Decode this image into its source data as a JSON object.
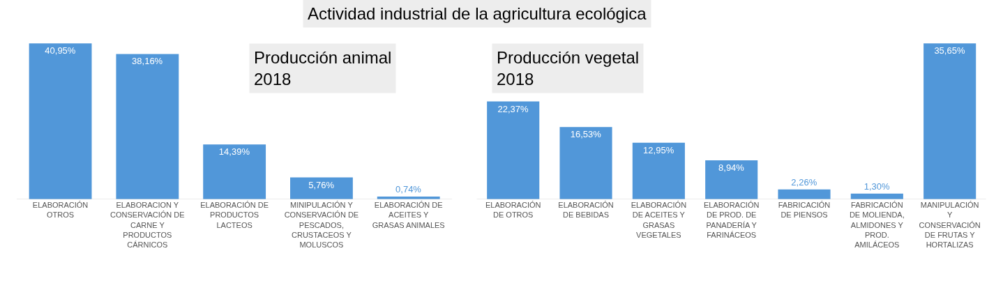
{
  "chart_data": [
    {
      "type": "bar",
      "title": "Actividad industrial de la agricultura ecológica",
      "subtitle": "Producción animal\n2018",
      "color": "#5197d9",
      "categories": [
        "ELABORACIÓN OTROS",
        "ELABORACION Y CONSERVACIÓN DE CARNE Y PRODUCTOS CÁRNICOS",
        "ELABORACIÓN DE PRODUCTOS LACTEOS",
        "MINIPULACIÓN Y CONSERVACIÓN DE PESCADOS, CRUSTACEOS Y MOLUSCOS",
        "ELABORACIÓN DE ACEITES Y GRASAS ANIMALES"
      ],
      "values": [
        40.95,
        38.16,
        14.39,
        5.76,
        0.74
      ],
      "value_labels": [
        "40,95%",
        "38,16%",
        "14,39%",
        "5,76%",
        "0,74%"
      ]
    },
    {
      "type": "bar",
      "title": "Producción vegetal\n2018",
      "color": "#5197d9",
      "categories": [
        "ELABORACIÓN DE OTROS",
        "ELABORACIÓN DE BEBIDAS",
        "ELABORACIÓN DE ACEITES Y GRASAS VEGETALES",
        "ELABORACIÓN DE PROD. DE PANADERÍA Y FARINÁCEOS",
        "FABRICACIÓN DE PIENSOS",
        "FABRICACIÓN DE MOLIENDA, ALMIDONES Y PROD. AMILÁCEOS",
        "MANIPULACIÓN Y CONSERVACIÓN DE FRUTAS Y HORTALIZAS"
      ],
      "values": [
        22.37,
        16.53,
        12.95,
        8.94,
        2.26,
        1.3,
        35.65
      ],
      "value_labels": [
        "22,37%",
        "16,53%",
        "12,95%",
        "8,94%",
        "2,26%",
        "1,30%",
        "35,65%"
      ]
    }
  ]
}
